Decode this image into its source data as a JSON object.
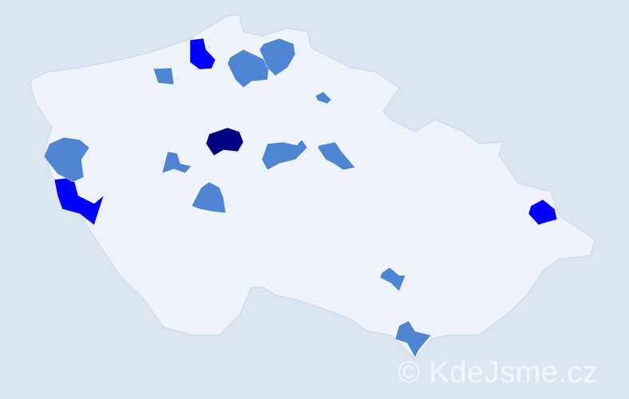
{
  "colors": {
    "background": "#dce5f2",
    "country_fill": "#eef2fa",
    "border": "#c9d4ea",
    "low": "#4f86d4",
    "medium": "#0000ff",
    "high": "#000080"
  },
  "highlighted_districts": [
    {
      "level": "medium"
    },
    {
      "level": "medium"
    },
    {
      "level": "medium"
    },
    {
      "level": "high"
    },
    {
      "level": "low"
    },
    {
      "level": "low"
    },
    {
      "level": "low"
    },
    {
      "level": "low"
    },
    {
      "level": "low"
    },
    {
      "level": "low"
    },
    {
      "level": "low"
    },
    {
      "level": "low"
    },
    {
      "level": "low"
    },
    {
      "level": "low"
    },
    {
      "level": "low"
    }
  ],
  "watermark": "© KdeJsme.cz"
}
